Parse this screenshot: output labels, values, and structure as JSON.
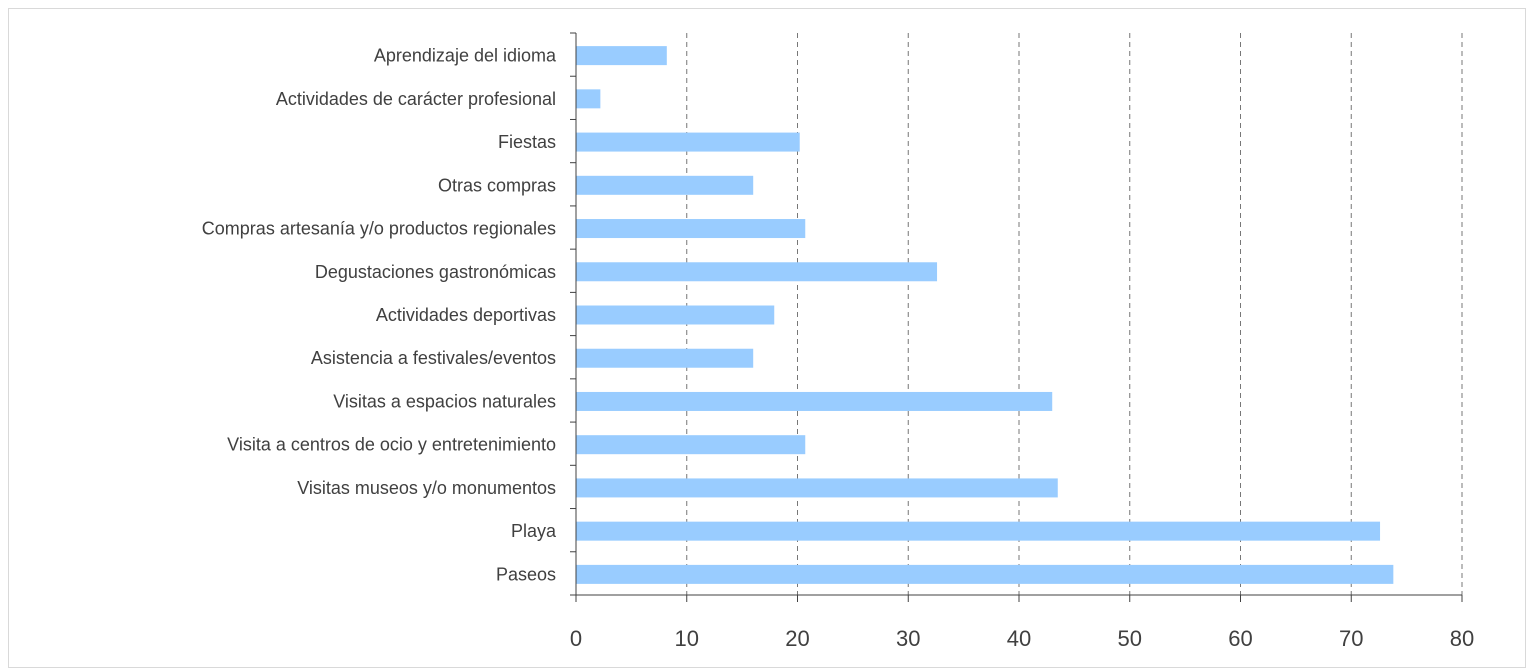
{
  "chart_data": {
    "type": "bar",
    "orientation": "horizontal",
    "categories": [
      "Aprendizaje del idioma",
      "Actividades de carácter profesional",
      "Fiestas",
      "Otras compras",
      "Compras artesanía y/o productos regionales",
      "Degustaciones gastronómicas",
      "Actividades deportivas",
      "Asistencia a festivales/eventos",
      "Visitas a espacios naturales",
      "Visita a centros de ocio y entretenimiento",
      "Visitas museos y/o monumentos",
      "Playa",
      "Paseos"
    ],
    "values": [
      8.2,
      2.2,
      20.2,
      16.0,
      20.7,
      32.6,
      17.9,
      16.0,
      43.0,
      20.7,
      43.5,
      72.6,
      73.8
    ],
    "xlim": [
      0,
      80
    ],
    "x_ticks": [
      "0",
      "10",
      "20",
      "30",
      "40",
      "50",
      "60",
      "70",
      "80"
    ],
    "grid": "vertical dashed",
    "bar_color": "#99ccff",
    "title": "",
    "xlabel": "",
    "ylabel": ""
  }
}
